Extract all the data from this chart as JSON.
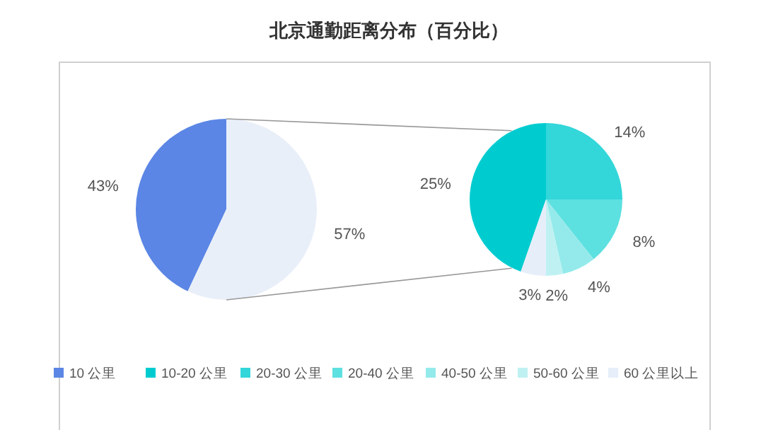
{
  "chart_data": [
    {
      "type": "pie",
      "title": "北京通勤距离分布（百分比）",
      "categories": [
        "10 公里",
        null
      ],
      "values": [
        43,
        57
      ],
      "colors": [
        "#5b86e5",
        "#e9eff9"
      ],
      "value_labels": [
        "43%",
        "57%"
      ],
      "legend": "bottom"
    },
    {
      "type": "pie",
      "categories": [
        "10-20 公里",
        "20-30 公里",
        "20-40 公里",
        "40-50 公里",
        "50-60 公里",
        "60 公里以上"
      ],
      "values": [
        25,
        14,
        8,
        4,
        2,
        3
      ],
      "colors": [
        "#00ccd0",
        "#33d6d9",
        "#5de0e0",
        "#94eaeb",
        "#bff1f2",
        "#e6eef9"
      ],
      "value_labels": [
        "25%",
        "14%",
        "8%",
        "4%",
        "2%",
        "3%"
      ],
      "legend": "bottom"
    }
  ]
}
